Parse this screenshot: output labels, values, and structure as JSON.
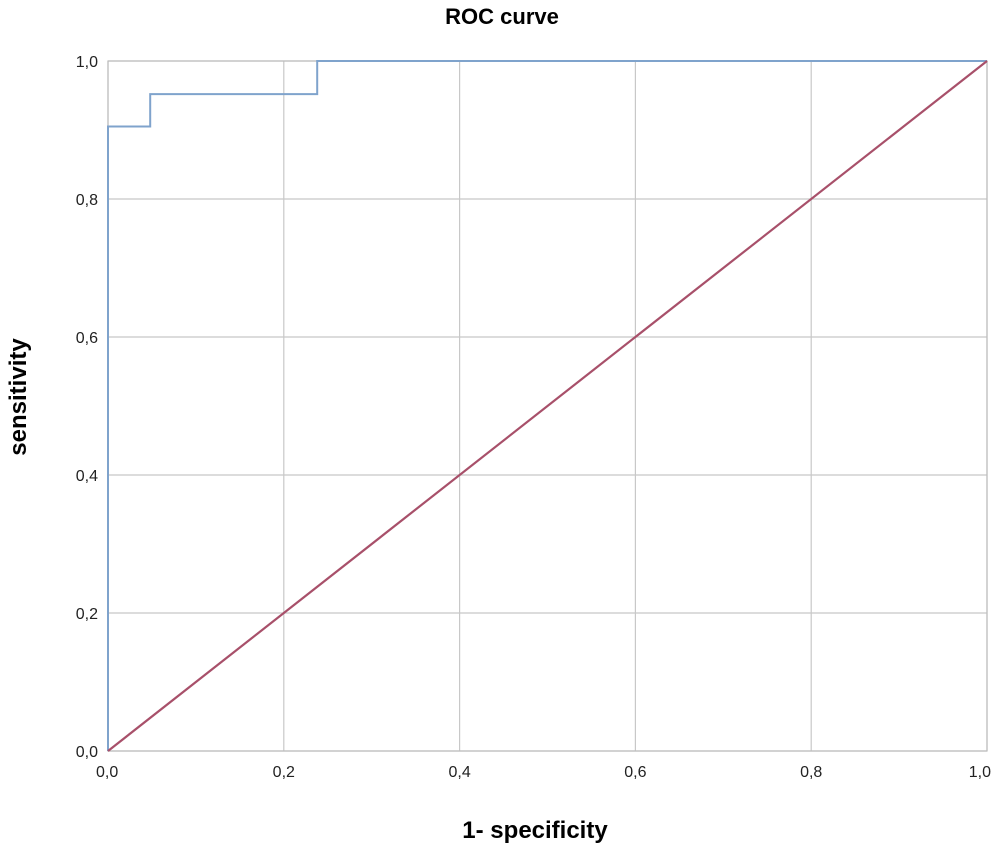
{
  "chart_data": {
    "type": "line",
    "title": "ROC curve",
    "xlabel": "1- specificity",
    "ylabel": "sensitivity",
    "xlim": [
      0,
      1
    ],
    "ylim": [
      0,
      1
    ],
    "grid": true,
    "x_ticks": [
      "0,0",
      "0,2",
      "0,4",
      "0,6",
      "0,8",
      "1,0"
    ],
    "y_ticks": [
      "0,0",
      "0,2",
      "0,4",
      "0,6",
      "0,8",
      "1,0"
    ],
    "series": [
      {
        "color": "#7fa3cc",
        "step": true,
        "x": [
          0,
          0,
          0.048,
          0.048,
          0.238,
          0.238,
          1
        ],
        "y": [
          0,
          0.905,
          0.905,
          0.952,
          0.952,
          1,
          1
        ]
      },
      {
        "color": "#a8506a",
        "step": false,
        "x": [
          0,
          1
        ],
        "y": [
          0,
          1
        ]
      }
    ]
  }
}
